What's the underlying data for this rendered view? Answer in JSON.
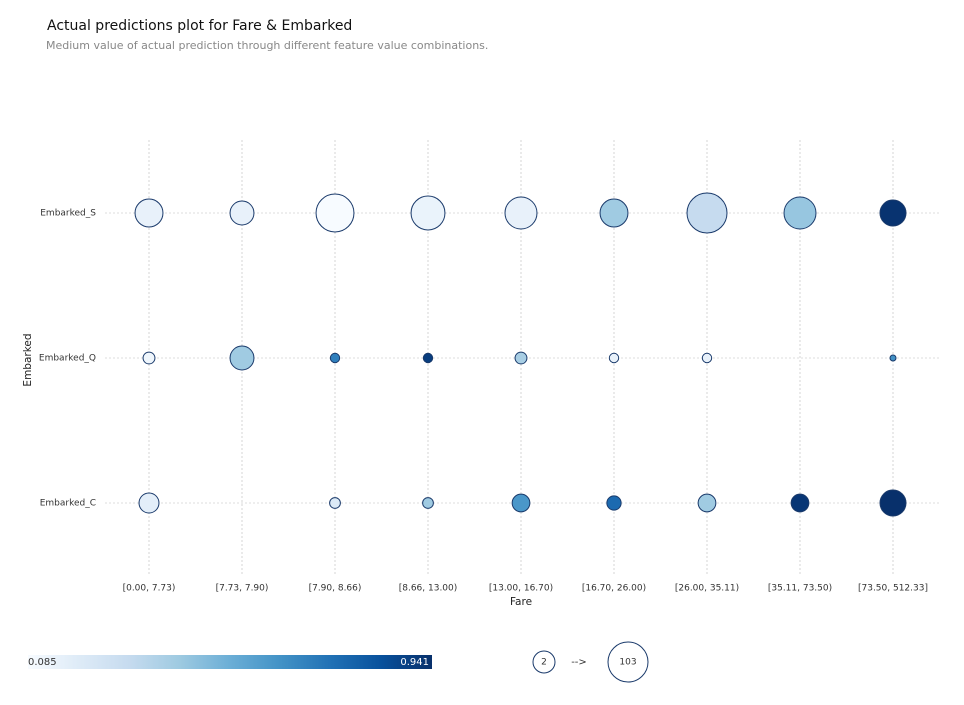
{
  "chart_data": {
    "type": "bubble",
    "title": "Actual predictions plot for Fare & Embarked",
    "subtitle": "Medium value of actual prediction through different feature value combinations.",
    "x_label": "Fare",
    "y_label": "Embarked",
    "categories": [
      "[0.00, 7.73)",
      "[7.73, 7.90)",
      "[7.90, 8.66)",
      "[8.66, 13.00)",
      "[13.00, 16.70)",
      "[16.70, 26.00)",
      "[26.00, 35.11)",
      "[35.11, 73.50)",
      "[73.50, 512.33]"
    ],
    "series": [
      {
        "name": "Embarked_S",
        "values": [
          0.15,
          0.15,
          0.085,
          0.14,
          0.15,
          0.4,
          0.3,
          0.42,
          0.93
        ],
        "sizes": [
          44,
          30,
          91,
          70,
          61,
          44,
          103,
          61,
          37
        ]
      },
      {
        "name": "Embarked_Q",
        "values": [
          0.12,
          0.4,
          0.68,
          0.9,
          0.38,
          0.15,
          0.15,
          null,
          0.62
        ],
        "sizes": [
          5,
          30,
          3,
          3,
          5,
          3,
          3,
          null,
          2
        ]
      },
      {
        "name": "Embarked_C",
        "values": [
          0.17,
          null,
          0.2,
          0.4,
          0.6,
          0.75,
          0.4,
          0.92,
          0.941
        ],
        "sizes": [
          19,
          null,
          4,
          4,
          14,
          8,
          14,
          14,
          37
        ]
      }
    ],
    "colormap": [
      "#f7fbff",
      "#deebf7",
      "#c6dbef",
      "#9ecae1",
      "#6baed6",
      "#4292c6",
      "#2171b5",
      "#08519c",
      "#08306b"
    ],
    "edge_color": "#1a3a6b",
    "color_range": [
      0.085,
      0.941
    ],
    "size_range": [
      2,
      103
    ],
    "size_legend_arrow": "-->",
    "grid": true
  }
}
